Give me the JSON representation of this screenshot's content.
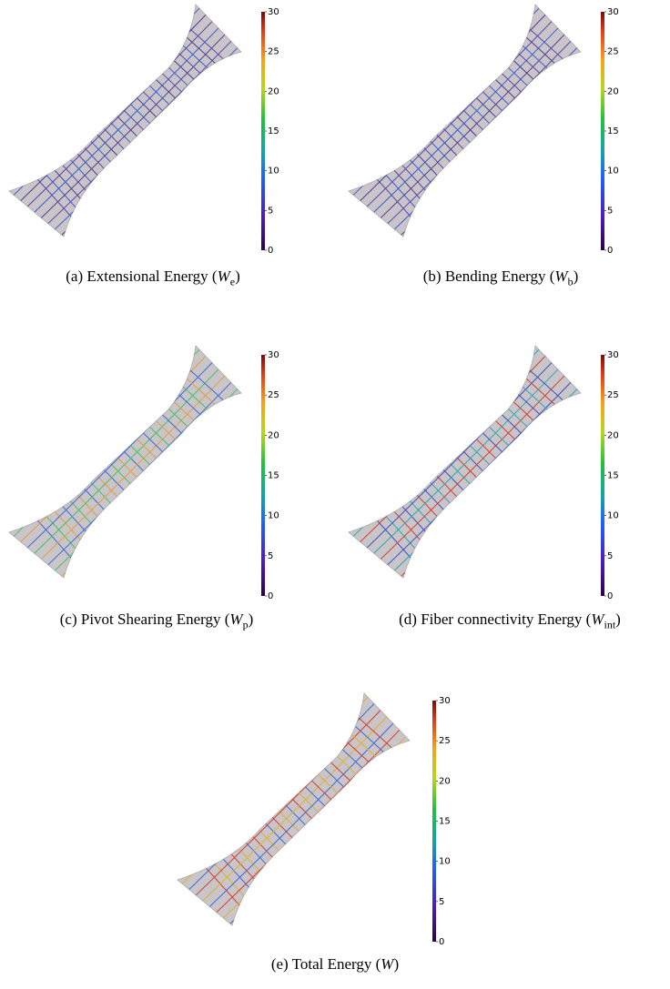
{
  "panels": [
    {
      "caption": {
        "text": "(a) Extensional Energy (",
        "symbol": "W",
        "subscript": "e",
        "close": ")"
      },
      "colorbar_ticks": [
        0,
        5,
        10,
        15,
        20,
        25,
        30
      ]
    },
    {
      "caption": {
        "text": "(b) Bending Energy (",
        "symbol": "W",
        "subscript": "b",
        "close": ")"
      },
      "colorbar_ticks": [
        0,
        5,
        10,
        15,
        20,
        25,
        30
      ]
    },
    {
      "caption": {
        "text": "(c) Pivot Shearing Energy (",
        "symbol": "W",
        "subscript": "p",
        "close": ")"
      },
      "colorbar_ticks": [
        0,
        5,
        10,
        15,
        20,
        25,
        30
      ]
    },
    {
      "caption": {
        "text": "(d) Fiber connectivity Energy (",
        "symbol": "W",
        "subscript": "int",
        "close": ")"
      },
      "colorbar_ticks": [
        0,
        5,
        10,
        15,
        20,
        25,
        30
      ]
    },
    {
      "caption": {
        "text": "(e) Total Energy (",
        "symbol": "W",
        "close": ")"
      },
      "colorbar_ticks": [
        0,
        5,
        10,
        15,
        20,
        25,
        30
      ]
    }
  ]
}
